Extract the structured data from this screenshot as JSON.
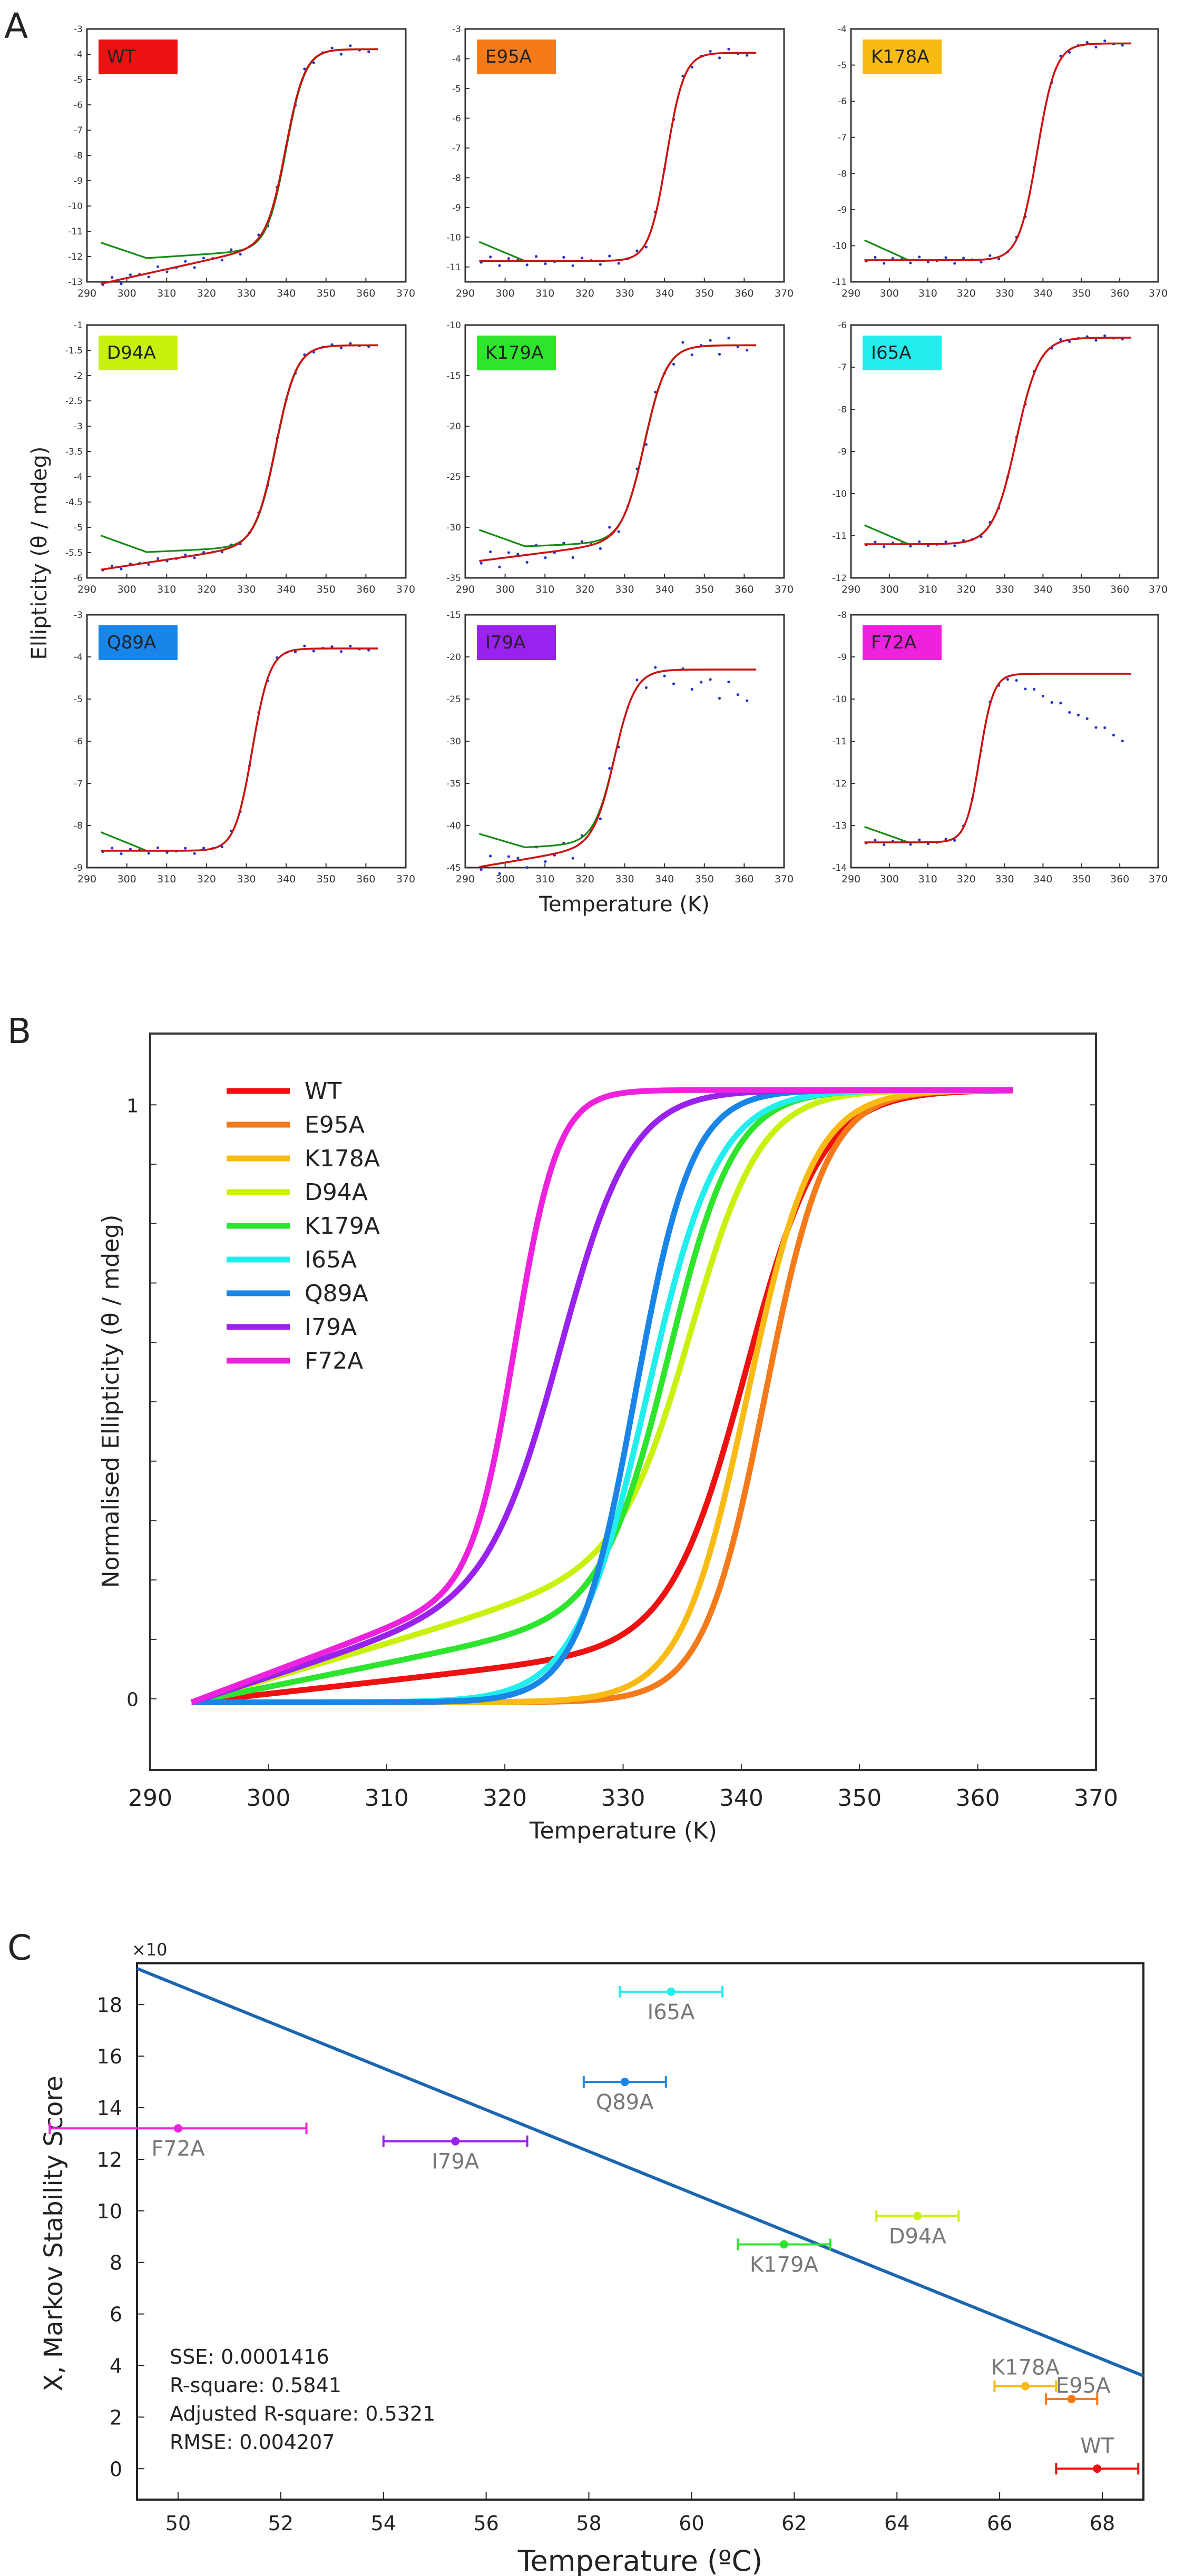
{
  "panel_labels": {
    "a": "A",
    "b": "B",
    "c": "C"
  },
  "colors": {
    "WT": "#ee1111",
    "E95A": "#f57a1a",
    "K178A": "#f8bb14",
    "D94A": "#c8f20e",
    "K179A": "#2ee52e",
    "I65A": "#22eeee",
    "Q89A": "#1a85e8",
    "I79A": "#9922ee",
    "F72A": "#ee22dd",
    "fit_red": "#cc1111",
    "fit_green": "#128b12",
    "dots": "#2233cc",
    "trend": "#1a66b0"
  },
  "chart_data": [
    {
      "type": "scatter",
      "panel": "A",
      "ylabel": "Ellipticity (θ / mdeg)",
      "xlabel": "Temperature (K)",
      "x_ticks": [
        290,
        300,
        310,
        320,
        330,
        340,
        350,
        360,
        370
      ],
      "xlim": [
        290,
        370
      ],
      "subplots": [
        {
          "name": "WT",
          "ylim": [
            -13,
            -3
          ],
          "yticks": [
            "-3",
            "-4",
            "-5",
            "-6",
            "-7",
            "-8",
            "-9",
            "-10",
            "-11",
            "-12",
            "-13"
          ],
          "tm": 340,
          "w": 2.4,
          "low": -11.8,
          "high": -3.8,
          "slope": 0.035,
          "dots_offset": 0.15
        },
        {
          "name": "E95A",
          "ylim": [
            -11.5,
            -3
          ],
          "yticks": [
            "-3",
            "-4",
            "-5",
            "-6",
            "-7",
            "-8",
            "-9",
            "-10",
            "-11"
          ],
          "tm": 340.5,
          "w": 2.2,
          "low": -10.8,
          "high": -3.8,
          "slope": 0.0,
          "dots_offset": 0.15
        },
        {
          "name": "K178A",
          "ylim": [
            -11,
            -4
          ],
          "yticks": [
            "-4",
            "-5",
            "-6",
            "-7",
            "-8",
            "-9",
            "-10",
            "-11"
          ],
          "tm": 338.5,
          "w": 2.4,
          "low": -10.4,
          "high": -4.4,
          "slope": 0.0,
          "dots_offset": 0.1
        },
        {
          "name": "D94A",
          "ylim": [
            -6,
            -1
          ],
          "yticks": [
            "-1",
            "-1.5",
            "-2",
            "-2.5",
            "-3",
            "-3.5",
            "-4",
            "-4.5",
            "-5",
            "-5.5",
            "-6"
          ],
          "tm": 337.5,
          "w": 2.6,
          "low": -5.4,
          "high": -1.4,
          "slope": 0.012,
          "dots_offset": 0.08
        },
        {
          "name": "K179A",
          "ylim": [
            -35,
            -10
          ],
          "yticks": [
            "-10",
            "-15",
            "-20",
            "-25",
            "-30",
            "-35"
          ],
          "tm": 335,
          "w": 2.8,
          "low": -31.5,
          "high": -12,
          "slope": 0.05,
          "dots_offset": 0.3
        },
        {
          "name": "I65A",
          "ylim": [
            -12,
            -6
          ],
          "yticks": [
            "-6",
            "-7",
            "-8",
            "-9",
            "-10",
            "-11",
            "-12"
          ],
          "tm": 333,
          "w": 3.0,
          "low": -11.2,
          "high": -6.3,
          "slope": 0.0,
          "dots_offset": 0.08
        },
        {
          "name": "Q89A",
          "ylim": [
            -9,
            -3
          ],
          "yticks": [
            "-3",
            "-4",
            "-5",
            "-6",
            "-7",
            "-8",
            "-9"
          ],
          "tm": 331.5,
          "w": 2.2,
          "low": -8.6,
          "high": -3.8,
          "slope": 0.0,
          "dots_offset": 0.1
        },
        {
          "name": "I79A",
          "ylim": [
            -45,
            -15
          ],
          "yticks": [
            "-15",
            "-20",
            "-25",
            "-30",
            "-35",
            "-40",
            "-45"
          ],
          "tm": 327.5,
          "w": 2.6,
          "low": -42,
          "high": -21.5,
          "slope": 0.08,
          "dots_offset": 0.4
        },
        {
          "name": "F72A",
          "ylim": [
            -14,
            -8
          ],
          "yticks": [
            "-8",
            "-9",
            "-10",
            "-11",
            "-12",
            "-13",
            "-14"
          ],
          "tm": 323.5,
          "w": 1.8,
          "low": -13.4,
          "high": -9.4,
          "slope": 0.0,
          "dots_offset": 0.1
        }
      ]
    },
    {
      "type": "line",
      "panel": "B",
      "xlabel": "Temperature (K)",
      "ylabel": "Normalised Ellipticity (θ / mdeg)",
      "xlim": [
        290,
        370
      ],
      "x_ticks": [
        290,
        300,
        310,
        320,
        330,
        340,
        350,
        360,
        370
      ],
      "ylim": [
        -0.12,
        1.12
      ],
      "y_tick_labels": [
        "0",
        "1"
      ],
      "x_range": [
        293.5,
        363
      ],
      "series": [
        {
          "name": "WT",
          "tm": 340.5,
          "w": 3.2,
          "base_slope": 0.0022
        },
        {
          "name": "E95A",
          "tm": 342,
          "w": 2.6,
          "base_slope": 0.0
        },
        {
          "name": "K178A",
          "tm": 340.5,
          "w": 2.8,
          "base_slope": 0.0
        },
        {
          "name": "D94A",
          "tm": 336,
          "w": 3.0,
          "base_slope": 0.006
        },
        {
          "name": "K179A",
          "tm": 334,
          "w": 2.8,
          "base_slope": 0.004
        },
        {
          "name": "I65A",
          "tm": 332,
          "w": 3.0,
          "base_slope": 0.0
        },
        {
          "name": "Q89A",
          "tm": 331,
          "w": 2.4,
          "base_slope": 0.0
        },
        {
          "name": "I79A",
          "tm": 325,
          "w": 3.0,
          "base_slope": 0.0065
        },
        {
          "name": "F72A",
          "tm": 321,
          "w": 1.8,
          "base_slope": 0.0075
        }
      ]
    },
    {
      "type": "scatter",
      "panel": "C",
      "xlabel": "Temperature (ºC)",
      "ylabel": "X, Markov Stability Score",
      "exponent_label": "×10",
      "xlim": [
        49.2,
        68.8
      ],
      "ylim": [
        -1.2,
        19.6
      ],
      "x_ticks": [
        50,
        52,
        54,
        56,
        58,
        60,
        62,
        64,
        66,
        68
      ],
      "y_ticks": [
        0,
        2,
        4,
        6,
        8,
        10,
        12,
        14,
        16,
        18
      ],
      "points": [
        {
          "name": "I65A",
          "x": 59.6,
          "y": 18.5,
          "xerr": 1.0
        },
        {
          "name": "Q89A",
          "x": 58.7,
          "y": 15.0,
          "xerr": 0.8
        },
        {
          "name": "F72A",
          "x": 50.0,
          "y": 13.2,
          "xerr": 2.5
        },
        {
          "name": "I79A",
          "x": 55.4,
          "y": 12.7,
          "xerr": 1.4
        },
        {
          "name": "D94A",
          "x": 64.4,
          "y": 9.8,
          "xerr": 0.8
        },
        {
          "name": "K179A",
          "x": 61.8,
          "y": 8.7,
          "xerr": 0.9
        },
        {
          "name": "K178A",
          "x": 66.5,
          "y": 3.2,
          "xerr": 0.6
        },
        {
          "name": "E95A",
          "x": 67.4,
          "y": 2.7,
          "xerr": 0.5
        },
        {
          "name": "WT",
          "x": 67.9,
          "y": 0.0,
          "xerr": 0.8
        }
      ],
      "trend_line": {
        "x": [
          49.2,
          68.8
        ],
        "y": [
          19.4,
          3.6
        ]
      },
      "stats": [
        "SSE: 0.0001416",
        "R-square: 0.5841",
        "Adjusted R-square: 0.5321",
        "RMSE: 0.004207"
      ]
    }
  ]
}
